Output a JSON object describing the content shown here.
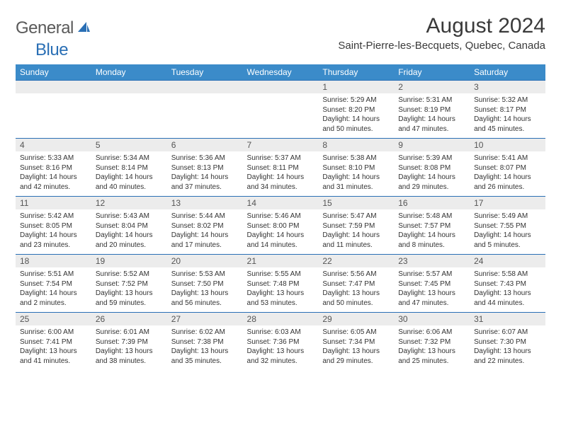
{
  "brand": {
    "part1": "General",
    "part2": "Blue"
  },
  "title": "August 2024",
  "location": "Saint-Pierre-les-Becquets, Quebec, Canada",
  "colors": {
    "header_bg": "#3b8bc9",
    "header_text": "#ffffff",
    "daynum_bg": "#ececec",
    "rule": "#2a6fb5",
    "brand_gray": "#5a5a5a",
    "brand_blue": "#2a6fb5",
    "body_text": "#333333"
  },
  "day_names": [
    "Sunday",
    "Monday",
    "Tuesday",
    "Wednesday",
    "Thursday",
    "Friday",
    "Saturday"
  ],
  "weeks": [
    [
      null,
      null,
      null,
      null,
      {
        "n": "1",
        "sr": "Sunrise: 5:29 AM",
        "ss": "Sunset: 8:20 PM",
        "dl1": "Daylight: 14 hours",
        "dl2": "and 50 minutes."
      },
      {
        "n": "2",
        "sr": "Sunrise: 5:31 AM",
        "ss": "Sunset: 8:19 PM",
        "dl1": "Daylight: 14 hours",
        "dl2": "and 47 minutes."
      },
      {
        "n": "3",
        "sr": "Sunrise: 5:32 AM",
        "ss": "Sunset: 8:17 PM",
        "dl1": "Daylight: 14 hours",
        "dl2": "and 45 minutes."
      }
    ],
    [
      {
        "n": "4",
        "sr": "Sunrise: 5:33 AM",
        "ss": "Sunset: 8:16 PM",
        "dl1": "Daylight: 14 hours",
        "dl2": "and 42 minutes."
      },
      {
        "n": "5",
        "sr": "Sunrise: 5:34 AM",
        "ss": "Sunset: 8:14 PM",
        "dl1": "Daylight: 14 hours",
        "dl2": "and 40 minutes."
      },
      {
        "n": "6",
        "sr": "Sunrise: 5:36 AM",
        "ss": "Sunset: 8:13 PM",
        "dl1": "Daylight: 14 hours",
        "dl2": "and 37 minutes."
      },
      {
        "n": "7",
        "sr": "Sunrise: 5:37 AM",
        "ss": "Sunset: 8:11 PM",
        "dl1": "Daylight: 14 hours",
        "dl2": "and 34 minutes."
      },
      {
        "n": "8",
        "sr": "Sunrise: 5:38 AM",
        "ss": "Sunset: 8:10 PM",
        "dl1": "Daylight: 14 hours",
        "dl2": "and 31 minutes."
      },
      {
        "n": "9",
        "sr": "Sunrise: 5:39 AM",
        "ss": "Sunset: 8:08 PM",
        "dl1": "Daylight: 14 hours",
        "dl2": "and 29 minutes."
      },
      {
        "n": "10",
        "sr": "Sunrise: 5:41 AM",
        "ss": "Sunset: 8:07 PM",
        "dl1": "Daylight: 14 hours",
        "dl2": "and 26 minutes."
      }
    ],
    [
      {
        "n": "11",
        "sr": "Sunrise: 5:42 AM",
        "ss": "Sunset: 8:05 PM",
        "dl1": "Daylight: 14 hours",
        "dl2": "and 23 minutes."
      },
      {
        "n": "12",
        "sr": "Sunrise: 5:43 AM",
        "ss": "Sunset: 8:04 PM",
        "dl1": "Daylight: 14 hours",
        "dl2": "and 20 minutes."
      },
      {
        "n": "13",
        "sr": "Sunrise: 5:44 AM",
        "ss": "Sunset: 8:02 PM",
        "dl1": "Daylight: 14 hours",
        "dl2": "and 17 minutes."
      },
      {
        "n": "14",
        "sr": "Sunrise: 5:46 AM",
        "ss": "Sunset: 8:00 PM",
        "dl1": "Daylight: 14 hours",
        "dl2": "and 14 minutes."
      },
      {
        "n": "15",
        "sr": "Sunrise: 5:47 AM",
        "ss": "Sunset: 7:59 PM",
        "dl1": "Daylight: 14 hours",
        "dl2": "and 11 minutes."
      },
      {
        "n": "16",
        "sr": "Sunrise: 5:48 AM",
        "ss": "Sunset: 7:57 PM",
        "dl1": "Daylight: 14 hours",
        "dl2": "and 8 minutes."
      },
      {
        "n": "17",
        "sr": "Sunrise: 5:49 AM",
        "ss": "Sunset: 7:55 PM",
        "dl1": "Daylight: 14 hours",
        "dl2": "and 5 minutes."
      }
    ],
    [
      {
        "n": "18",
        "sr": "Sunrise: 5:51 AM",
        "ss": "Sunset: 7:54 PM",
        "dl1": "Daylight: 14 hours",
        "dl2": "and 2 minutes."
      },
      {
        "n": "19",
        "sr": "Sunrise: 5:52 AM",
        "ss": "Sunset: 7:52 PM",
        "dl1": "Daylight: 13 hours",
        "dl2": "and 59 minutes."
      },
      {
        "n": "20",
        "sr": "Sunrise: 5:53 AM",
        "ss": "Sunset: 7:50 PM",
        "dl1": "Daylight: 13 hours",
        "dl2": "and 56 minutes."
      },
      {
        "n": "21",
        "sr": "Sunrise: 5:55 AM",
        "ss": "Sunset: 7:48 PM",
        "dl1": "Daylight: 13 hours",
        "dl2": "and 53 minutes."
      },
      {
        "n": "22",
        "sr": "Sunrise: 5:56 AM",
        "ss": "Sunset: 7:47 PM",
        "dl1": "Daylight: 13 hours",
        "dl2": "and 50 minutes."
      },
      {
        "n": "23",
        "sr": "Sunrise: 5:57 AM",
        "ss": "Sunset: 7:45 PM",
        "dl1": "Daylight: 13 hours",
        "dl2": "and 47 minutes."
      },
      {
        "n": "24",
        "sr": "Sunrise: 5:58 AM",
        "ss": "Sunset: 7:43 PM",
        "dl1": "Daylight: 13 hours",
        "dl2": "and 44 minutes."
      }
    ],
    [
      {
        "n": "25",
        "sr": "Sunrise: 6:00 AM",
        "ss": "Sunset: 7:41 PM",
        "dl1": "Daylight: 13 hours",
        "dl2": "and 41 minutes."
      },
      {
        "n": "26",
        "sr": "Sunrise: 6:01 AM",
        "ss": "Sunset: 7:39 PM",
        "dl1": "Daylight: 13 hours",
        "dl2": "and 38 minutes."
      },
      {
        "n": "27",
        "sr": "Sunrise: 6:02 AM",
        "ss": "Sunset: 7:38 PM",
        "dl1": "Daylight: 13 hours",
        "dl2": "and 35 minutes."
      },
      {
        "n": "28",
        "sr": "Sunrise: 6:03 AM",
        "ss": "Sunset: 7:36 PM",
        "dl1": "Daylight: 13 hours",
        "dl2": "and 32 minutes."
      },
      {
        "n": "29",
        "sr": "Sunrise: 6:05 AM",
        "ss": "Sunset: 7:34 PM",
        "dl1": "Daylight: 13 hours",
        "dl2": "and 29 minutes."
      },
      {
        "n": "30",
        "sr": "Sunrise: 6:06 AM",
        "ss": "Sunset: 7:32 PM",
        "dl1": "Daylight: 13 hours",
        "dl2": "and 25 minutes."
      },
      {
        "n": "31",
        "sr": "Sunrise: 6:07 AM",
        "ss": "Sunset: 7:30 PM",
        "dl1": "Daylight: 13 hours",
        "dl2": "and 22 minutes."
      }
    ]
  ]
}
